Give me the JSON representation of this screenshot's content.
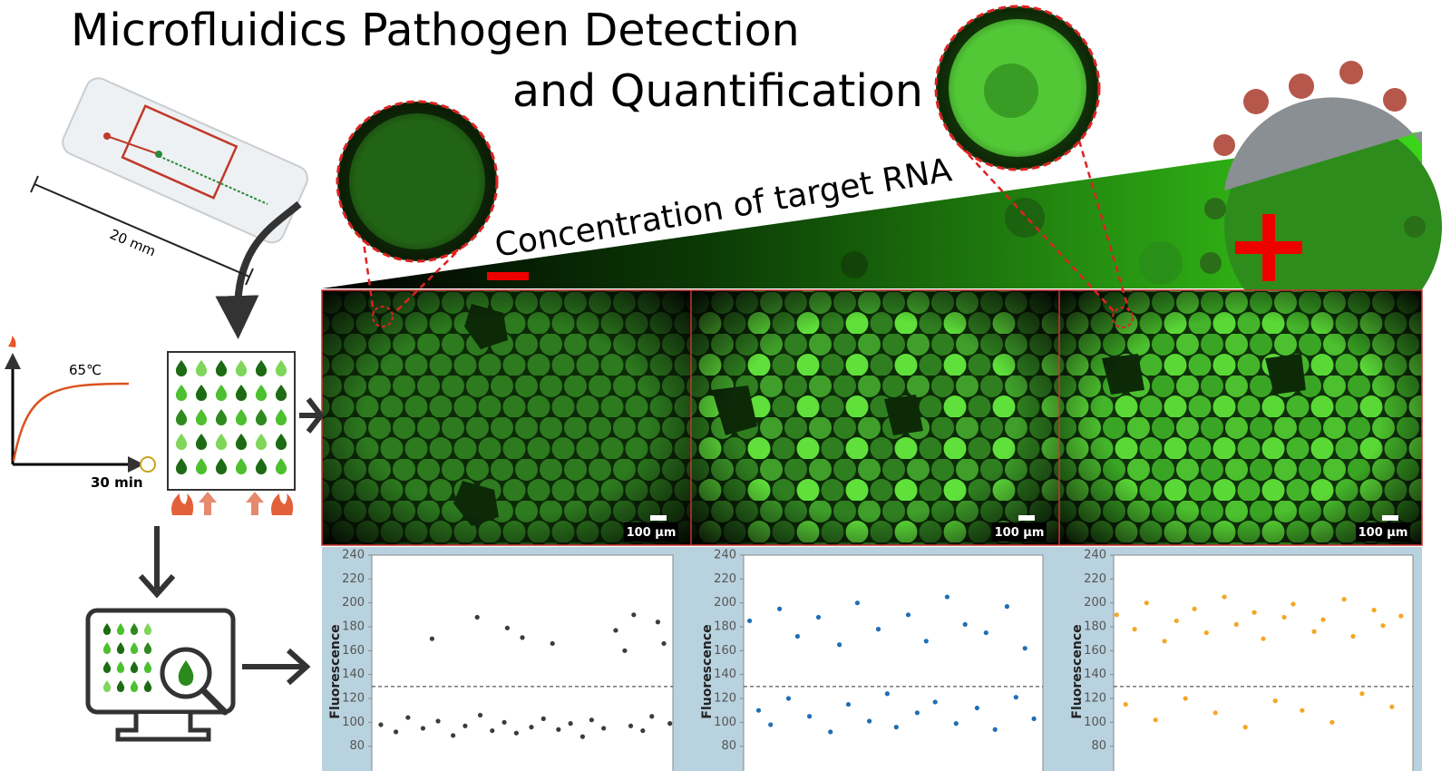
{
  "header": {
    "title_line1": "Microfluidics Pathogen Detection",
    "title_line2": "and Quantification"
  },
  "device": {
    "scale_label": "20 mm"
  },
  "heating": {
    "temperature": "65℃",
    "time": "30 min"
  },
  "gradient": {
    "label": "Concentration of target RNA"
  },
  "micrographs": [
    {
      "scale": "100 μm"
    },
    {
      "scale": "100 μm"
    },
    {
      "scale": "100 μm"
    }
  ],
  "chart_data": [
    {
      "type": "scatter",
      "y_label": "Fluorescence",
      "color": "#3c3c3c",
      "ylim": [
        60,
        240
      ],
      "yticks": [
        80,
        100,
        120,
        140,
        160,
        180,
        200,
        220,
        240
      ],
      "xlim": [
        0,
        100
      ],
      "threshold": 130,
      "x": [
        3,
        8,
        12,
        17,
        20,
        22,
        27,
        31,
        35,
        36,
        40,
        44,
        45,
        48,
        50,
        53,
        57,
        60,
        62,
        66,
        70,
        73,
        77,
        81,
        84,
        86,
        87,
        90,
        93,
        95,
        97,
        99
      ],
      "values": [
        98,
        92,
        104,
        95,
        170,
        101,
        89,
        97,
        188,
        106,
        93,
        100,
        179,
        91,
        171,
        96,
        103,
        166,
        94,
        99,
        88,
        102,
        95,
        177,
        160,
        97,
        190,
        93,
        105,
        184,
        166,
        99
      ]
    },
    {
      "type": "scatter",
      "y_label": "Fluorescence",
      "color": "#1f6fb4",
      "ylim": [
        60,
        240
      ],
      "yticks": [
        80,
        100,
        120,
        140,
        160,
        180,
        200,
        220,
        240
      ],
      "xlim": [
        0,
        100
      ],
      "threshold": 130,
      "x": [
        2,
        5,
        9,
        12,
        15,
        18,
        22,
        25,
        29,
        32,
        35,
        38,
        42,
        45,
        48,
        51,
        55,
        58,
        61,
        64,
        68,
        71,
        74,
        78,
        81,
        84,
        88,
        91,
        94,
        97
      ],
      "values": [
        185,
        110,
        98,
        195,
        120,
        172,
        105,
        188,
        92,
        165,
        115,
        200,
        101,
        178,
        124,
        96,
        190,
        108,
        168,
        117,
        205,
        99,
        182,
        112,
        175,
        94,
        197,
        121,
        162,
        103
      ]
    },
    {
      "type": "scatter",
      "y_label": "Fluorescence",
      "color": "#f5a623",
      "ylim": [
        60,
        240
      ],
      "yticks": [
        80,
        100,
        120,
        140,
        160,
        180,
        200,
        220,
        240
      ],
      "xlim": [
        0,
        100
      ],
      "threshold": 130,
      "x": [
        1,
        4,
        7,
        11,
        14,
        17,
        21,
        24,
        27,
        31,
        34,
        37,
        41,
        44,
        47,
        50,
        54,
        57,
        60,
        63,
        67,
        70,
        73,
        77,
        80,
        83,
        87,
        90,
        93,
        96
      ],
      "values": [
        190,
        115,
        178,
        200,
        102,
        168,
        185,
        120,
        195,
        175,
        108,
        205,
        182,
        96,
        192,
        170,
        118,
        188,
        199,
        110,
        176,
        186,
        100,
        203,
        172,
        124,
        194,
        181,
        113,
        189
      ]
    }
  ]
}
